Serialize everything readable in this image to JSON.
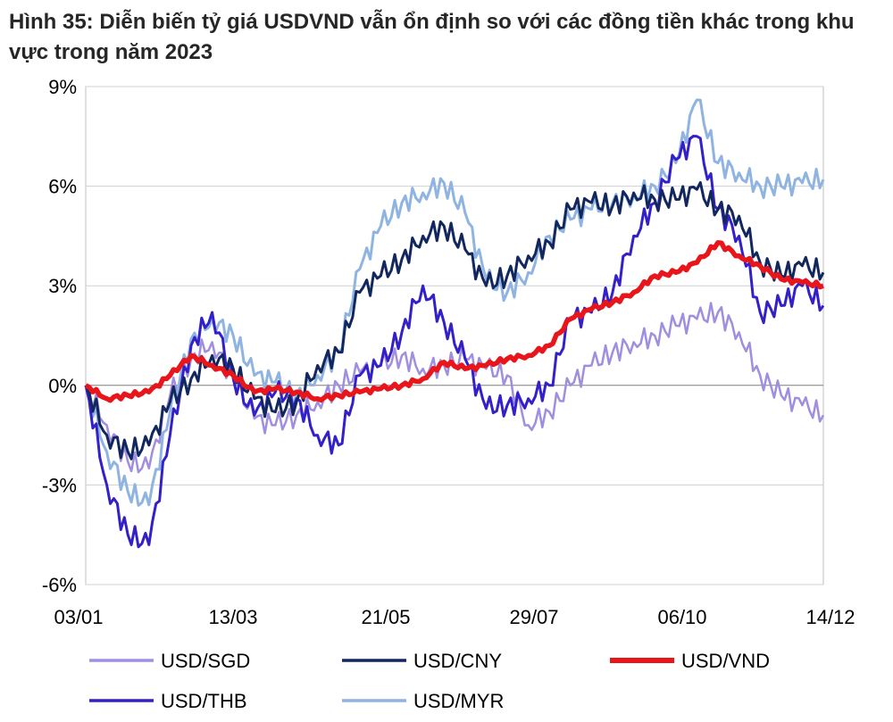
{
  "title": {
    "fig_label": "Hình 35:",
    "text": "Diễn biến tỷ giá USDVND vẫn ổn định so với các đồng tiền khác trong khu vực trong năm 2023"
  },
  "colors": {
    "USD/SGD": "#a08ee0",
    "USD/CNY": "#12275e",
    "USD/VND": "#e8161b",
    "USD/THB": "#3320c8",
    "USD/MYR": "#90b4e2"
  },
  "chart_data": {
    "type": "line",
    "title": "Diễn biến tỷ giá USDVND vẫn ổn định so với các đồng tiền khác trong khu vực trong năm 2023",
    "xlabel": "",
    "ylabel": "",
    "x_tick_labels": [
      "03/01",
      "13/03",
      "21/05",
      "29/07",
      "06/10",
      "14/12"
    ],
    "y_tick_labels": [
      "9%",
      "6%",
      "3%",
      "0%",
      "-3%",
      "-6%"
    ],
    "ylim": [
      -6,
      9
    ],
    "y_unit": "%",
    "grid": "horizontal",
    "legend_position": "bottom",
    "x": [
      "03/01",
      "13/01",
      "23/01",
      "02/02",
      "12/02",
      "22/02",
      "04/03",
      "13/03",
      "23/03",
      "02/04",
      "12/04",
      "22/04",
      "02/05",
      "12/05",
      "21/05",
      "31/05",
      "10/06",
      "20/06",
      "30/06",
      "10/07",
      "20/07",
      "29/07",
      "08/08",
      "18/08",
      "28/08",
      "07/09",
      "17/09",
      "27/09",
      "06/10",
      "16/10",
      "26/10",
      "05/11",
      "15/11",
      "25/11",
      "05/12",
      "14/12"
    ],
    "series": [
      {
        "name": "USD/SGD",
        "values": [
          0,
          -1.2,
          -2.3,
          -2.5,
          -0.3,
          0.8,
          1.3,
          0.2,
          -1.0,
          -1.2,
          -0.9,
          -0.5,
          0.0,
          0.4,
          0.6,
          0.9,
          0.5,
          0.6,
          0.8,
          0.5,
          0.3,
          -1.2,
          -0.8,
          0.0,
          0.6,
          1.0,
          1.3,
          1.5,
          1.8,
          2.0,
          2.2,
          1.6,
          0.3,
          -0.3,
          -0.6,
          -0.9
        ]
      },
      {
        "name": "USD/CNY",
        "values": [
          0,
          -1.5,
          -2.0,
          -1.8,
          -0.5,
          0.2,
          0.9,
          0.5,
          -0.4,
          -0.8,
          -0.5,
          0.6,
          1.0,
          2.8,
          3.3,
          3.8,
          4.5,
          4.8,
          4.1,
          3.0,
          3.3,
          3.9,
          4.3,
          5.3,
          5.5,
          5.4,
          5.8,
          5.6,
          5.6,
          5.9,
          5.3,
          5.1,
          3.7,
          3.3,
          3.6,
          3.4
        ]
      },
      {
        "name": "USD/VND",
        "values": [
          0,
          -0.4,
          -0.3,
          -0.2,
          0.3,
          0.9,
          0.6,
          0.3,
          -0.2,
          -0.1,
          -0.2,
          -0.4,
          -0.3,
          -0.2,
          -0.1,
          0.0,
          0.2,
          0.7,
          0.5,
          0.6,
          0.8,
          0.9,
          1.2,
          2.0,
          2.3,
          2.5,
          2.8,
          3.3,
          3.4,
          3.7,
          4.3,
          3.9,
          3.6,
          3.2,
          3.1,
          3.0
        ]
      },
      {
        "name": "USD/THB",
        "values": [
          0,
          -3.0,
          -4.5,
          -4.8,
          -1.5,
          1.2,
          2.2,
          0.2,
          -0.9,
          -0.2,
          -0.4,
          -1.5,
          -1.8,
          0.3,
          0.6,
          1.6,
          3.0,
          1.9,
          0.8,
          -0.7,
          -0.6,
          -0.4,
          0.0,
          2.0,
          2.2,
          2.8,
          4.5,
          5.5,
          6.8,
          7.5,
          5.3,
          4.5,
          2.2,
          2.4,
          3.0,
          2.4
        ]
      },
      {
        "name": "USD/MYR",
        "values": [
          0,
          -2.0,
          -3.2,
          -3.6,
          -0.8,
          1.4,
          2.0,
          1.5,
          0.3,
          0.1,
          -0.3,
          0.3,
          1.0,
          3.5,
          4.8,
          5.5,
          5.8,
          6.1,
          5.2,
          3.2,
          2.8,
          3.4,
          4.5,
          5.0,
          5.3,
          5.5,
          5.7,
          6.0,
          6.7,
          8.6,
          6.7,
          6.4,
          6.0,
          6.0,
          6.1,
          6.2
        ]
      }
    ]
  }
}
